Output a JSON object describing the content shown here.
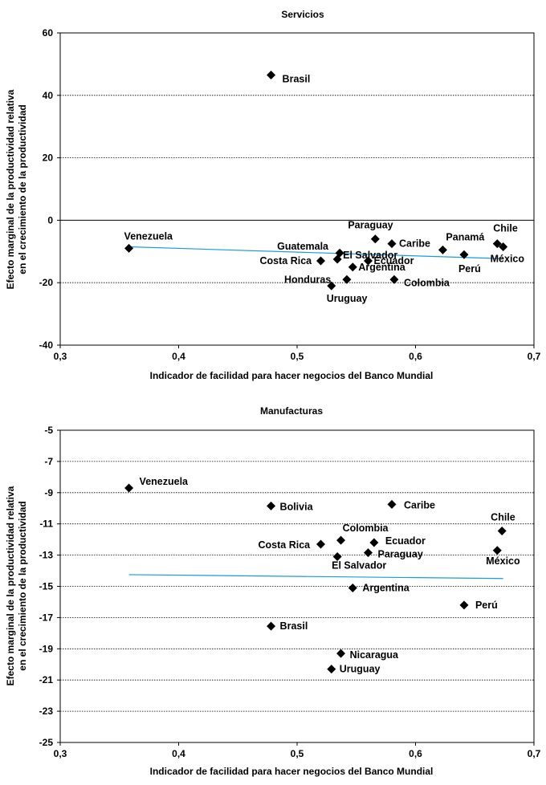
{
  "chart_data": [
    {
      "type": "scatter",
      "title": "Servicios",
      "xlabel": "Indicador de facilidad para hacer negocios del Banco Mundial",
      "ylabel": [
        "Efecto marginal de la productividad relativa",
        "en el crecimiento de la productividad"
      ],
      "xlim": [
        0.3,
        0.7
      ],
      "ylim": [
        -40,
        60
      ],
      "xticks": [
        0.3,
        0.4,
        0.5,
        0.6,
        0.7
      ],
      "xtick_labels": [
        "0,3",
        "0,4",
        "0,5",
        "0,6",
        "0,7"
      ],
      "yticks": [
        -40,
        -20,
        0,
        20,
        40,
        60
      ],
      "ytick_labels": [
        "-40",
        "-20",
        "0",
        "20",
        "40",
        "60"
      ],
      "zero_line": true,
      "points": [
        {
          "label": "Brasil",
          "x": 0.478,
          "y": 46.5
        },
        {
          "label": "Venezuela",
          "x": 0.358,
          "y": -9
        },
        {
          "label": "Paraguay",
          "x": 0.566,
          "y": -6
        },
        {
          "label": "Caribe",
          "x": 0.58,
          "y": -7.5
        },
        {
          "label": "Guatemala",
          "x": 0.536,
          "y": -10.5
        },
        {
          "label": "El Salvador",
          "x": 0.534,
          "y": -12.5
        },
        {
          "label": "Costa Rica",
          "x": 0.52,
          "y": -13
        },
        {
          "label": "Ecuador",
          "x": 0.56,
          "y": -13
        },
        {
          "label": "Argentina",
          "x": 0.547,
          "y": -15
        },
        {
          "label": "Honduras",
          "x": 0.542,
          "y": -19
        },
        {
          "label": "Uruguay",
          "x": 0.529,
          "y": -21
        },
        {
          "label": "Colombia",
          "x": 0.582,
          "y": -19
        },
        {
          "label": "Panamá",
          "x": 0.623,
          "y": -9.5
        },
        {
          "label": "Perú",
          "x": 0.641,
          "y": -11
        },
        {
          "label": "Chile",
          "x": 0.669,
          "y": -7.5
        },
        {
          "label": "México",
          "x": 0.674,
          "y": -8.5
        }
      ],
      "trend": {
        "x": [
          0.358,
          0.674
        ],
        "y": [
          -8.5,
          -12.3
        ],
        "color": "#1a9be0"
      }
    },
    {
      "type": "scatter",
      "title": "Manufacturas",
      "xlabel": "Indicador de facilidad para hacer negocios del Banco Mundial",
      "ylabel": [
        "Efecto marginal de la productividad relativa",
        "en el crecimiento de la productividad"
      ],
      "xlim": [
        0.3,
        0.7
      ],
      "ylim": [
        -25,
        -5
      ],
      "xticks": [
        0.3,
        0.4,
        0.5,
        0.6,
        0.7
      ],
      "xtick_labels": [
        "0,3",
        "0,4",
        "0,5",
        "0,6",
        "0,7"
      ],
      "yticks": [
        -25,
        -23,
        -21,
        -19,
        -17,
        -15,
        -13,
        -11,
        -9,
        -7,
        -5
      ],
      "ytick_labels": [
        "-25",
        "-23",
        "-21",
        "-19",
        "-17",
        "-15",
        "-13",
        "-11",
        "-9",
        "-7",
        "-5"
      ],
      "zero_line": false,
      "points": [
        {
          "label": "Venezuela",
          "x": 0.358,
          "y": -8.7
        },
        {
          "label": "Bolivia",
          "x": 0.478,
          "y": -9.85
        },
        {
          "label": "Caribe",
          "x": 0.58,
          "y": -9.75
        },
        {
          "label": "Chile",
          "x": 0.673,
          "y": -11.45
        },
        {
          "label": "Colombia",
          "x": 0.537,
          "y": -12.05
        },
        {
          "label": "Costa Rica",
          "x": 0.52,
          "y": -12.3
        },
        {
          "label": "Ecuador",
          "x": 0.565,
          "y": -12.2
        },
        {
          "label": "Paraguay",
          "x": 0.56,
          "y": -12.85
        },
        {
          "label": "El Salvador",
          "x": 0.534,
          "y": -13.1
        },
        {
          "label": "México",
          "x": 0.669,
          "y": -12.7
        },
        {
          "label": "Argentina",
          "x": 0.547,
          "y": -15.1
        },
        {
          "label": "Perú",
          "x": 0.641,
          "y": -16.2
        },
        {
          "label": "Brasil",
          "x": 0.478,
          "y": -17.55
        },
        {
          "label": "Nicaragua",
          "x": 0.537,
          "y": -19.3
        },
        {
          "label": "Uruguay",
          "x": 0.529,
          "y": -20.3
        }
      ],
      "trend": {
        "x": [
          0.358,
          0.674
        ],
        "y": [
          -14.25,
          -14.5
        ],
        "color": "#1a9be0"
      }
    }
  ]
}
